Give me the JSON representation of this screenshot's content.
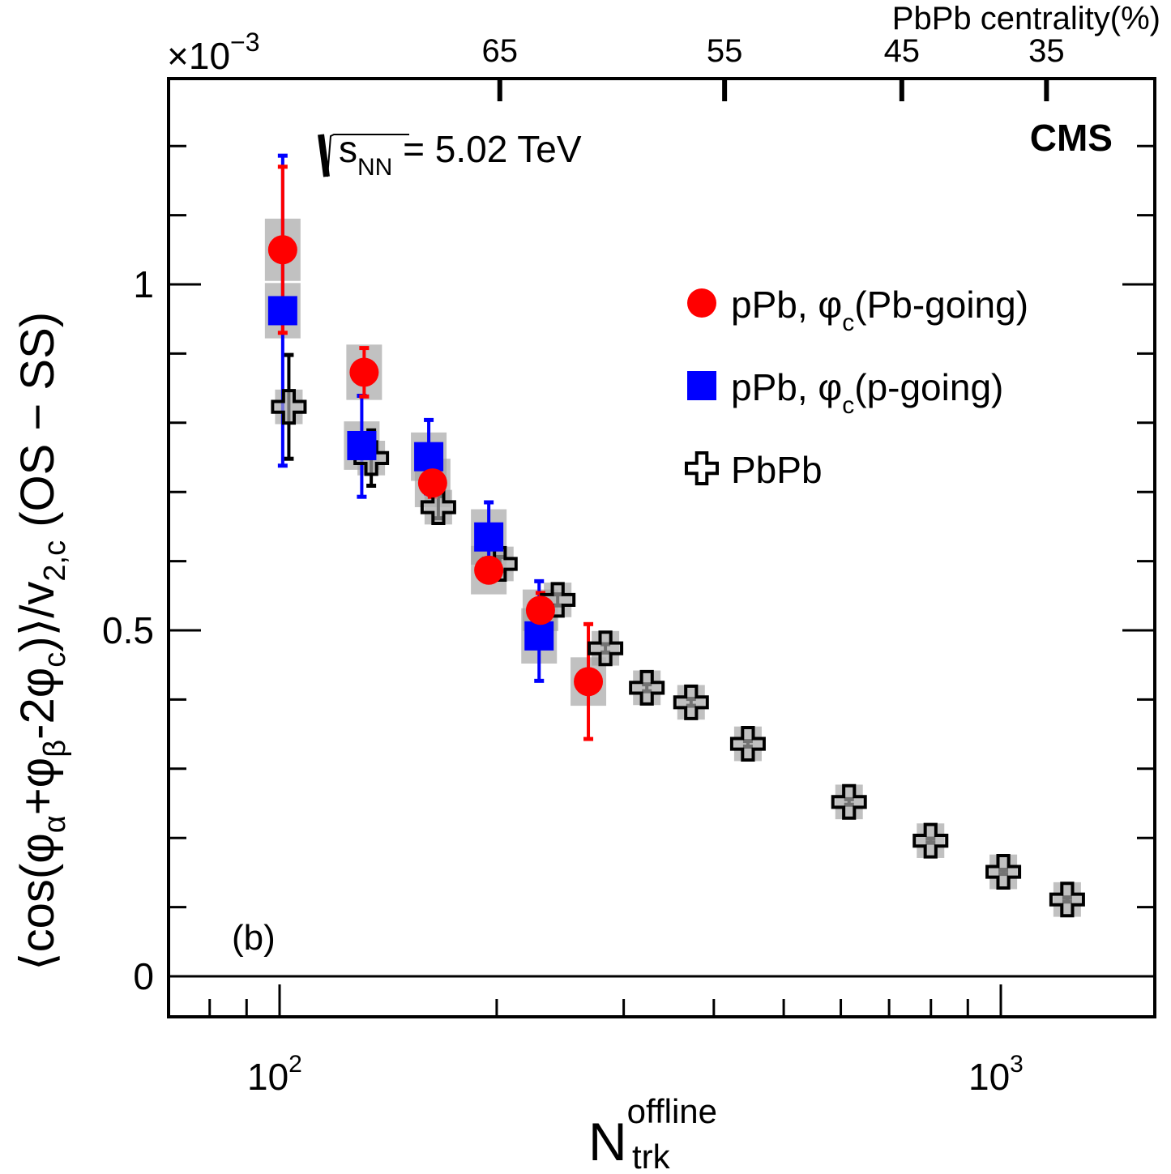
{
  "chart_data": {
    "type": "scatter",
    "title": "",
    "xlabel": "N_trk^offline",
    "xlabel_main": "N",
    "xlabel_sup": "offline",
    "xlabel_sub": "trk",
    "ylabel": "⟨cos(φα+φβ-2φc)⟩/v2,c (OS − SS)",
    "ylabel_parts": {
      "open": "⟨cos(φ",
      "sub_alpha": "α",
      "plus": "+φ",
      "sub_beta": "β",
      "minus2": "-2φ",
      "sub_c": "c",
      "close": ")⟩/v",
      "sub_2c": "2,c",
      "tail": " (OS − SS)"
    },
    "y_multiplier": "×10",
    "y_multiplier_exp": "−3",
    "xscale": "log",
    "xlim": [
      70,
      1630
    ],
    "ylim": [
      -0.06,
      1.3
    ],
    "grid": false,
    "x_ticks_major": [
      {
        "value": 100,
        "base": "10",
        "exp": "2"
      },
      {
        "value": 1000,
        "base": "10",
        "exp": "3"
      }
    ],
    "x_ticks_minor": [
      80,
      90,
      200,
      300,
      400,
      500,
      600,
      700,
      800,
      900
    ],
    "y_ticks_major": [
      {
        "value": 0,
        "label": "0"
      },
      {
        "value": 0.5,
        "label": "0.5"
      },
      {
        "value": 1,
        "label": "1"
      }
    ],
    "y_ticks_minor": [
      0.1,
      0.2,
      0.3,
      0.4,
      0.6,
      0.7,
      0.8,
      0.9,
      1.1,
      1.2
    ],
    "top_axis": {
      "label": "PbPb centrality(%)",
      "ticks": [
        {
          "label": "65",
          "n_value": 202
        },
        {
          "label": "55",
          "n_value": 414
        },
        {
          "label": "45",
          "n_value": 729
        },
        {
          "label": "35",
          "n_value": 1157
        }
      ]
    },
    "annotations": {
      "energy_prefix": "s",
      "energy_sub": "NN",
      "energy_value": " = 5.02 TeV",
      "experiment": "CMS",
      "panel": "(b)"
    },
    "legend_position": "top-right",
    "series": [
      {
        "name": "pPb, φc(Pb-going)",
        "legend_main": "pPb, φ",
        "legend_sub": "c",
        "legend_tail": "(Pb-going)",
        "marker": "circle",
        "color": "#ff0000",
        "points": [
          {
            "x": 101,
            "y": 1.05,
            "err_lo": 0.12,
            "err_hi": 0.12,
            "sys": 0.045
          },
          {
            "x": 131,
            "y": 0.873,
            "err_lo": 0.035,
            "err_hi": 0.035,
            "sys": 0.04
          },
          {
            "x": 163,
            "y": 0.713,
            "err_lo": 0.02,
            "err_hi": 0.02,
            "sys": 0.035
          },
          {
            "x": 195,
            "y": 0.587,
            "err_lo": 0.015,
            "err_hi": 0.015,
            "sys": 0.035
          },
          {
            "x": 230,
            "y": 0.529,
            "err_lo": 0.025,
            "err_hi": 0.025,
            "sys": 0.03
          },
          {
            "x": 268,
            "y": 0.426,
            "err_lo": 0.083,
            "err_hi": 0.083,
            "sys": 0.035
          }
        ]
      },
      {
        "name": "pPb, φc(p-going)",
        "legend_main": "pPb, φ",
        "legend_sub": "c",
        "legend_tail": "(p-going)",
        "marker": "square",
        "color": "#0000ff",
        "points": [
          {
            "x": 101,
            "y": 0.962,
            "err_lo": 0.224,
            "err_hi": 0.224,
            "sys": 0.04
          },
          {
            "x": 130,
            "y": 0.767,
            "err_lo": 0.074,
            "err_hi": 0.072,
            "sys": 0.035
          },
          {
            "x": 161,
            "y": 0.751,
            "err_lo": 0.053,
            "err_hi": 0.053,
            "sys": 0.035
          },
          {
            "x": 195,
            "y": 0.635,
            "err_lo": 0.05,
            "err_hi": 0.05,
            "sys": 0.04
          },
          {
            "x": 229,
            "y": 0.492,
            "err_lo": 0.065,
            "err_hi": 0.079,
            "sys": 0.04
          }
        ]
      },
      {
        "name": "PbPb",
        "legend_main": "PbPb",
        "legend_sub": "",
        "legend_tail": "",
        "marker": "cross-open",
        "color": "#000000",
        "points": [
          {
            "x": 103,
            "y": 0.823,
            "err_lo": 0.075,
            "err_hi": 0.075,
            "sys": 0.025
          },
          {
            "x": 134,
            "y": 0.749,
            "err_lo": 0.04,
            "err_hi": 0.04,
            "sys": 0.025
          },
          {
            "x": 166,
            "y": 0.678,
            "err_lo": 0.016,
            "err_hi": 0.016,
            "sys": 0.025
          },
          {
            "x": 202,
            "y": 0.596,
            "err_lo": 0.01,
            "err_hi": 0.01,
            "sys": 0.025
          },
          {
            "x": 243,
            "y": 0.544,
            "err_lo": 0.008,
            "err_hi": 0.008,
            "sys": 0.025
          },
          {
            "x": 283,
            "y": 0.474,
            "err_lo": 0.006,
            "err_hi": 0.006,
            "sys": 0.025
          },
          {
            "x": 323,
            "y": 0.417,
            "err_lo": 0.005,
            "err_hi": 0.005,
            "sys": 0.025
          },
          {
            "x": 372,
            "y": 0.396,
            "err_lo": 0.005,
            "err_hi": 0.005,
            "sys": 0.025
          },
          {
            "x": 446,
            "y": 0.336,
            "err_lo": 0.004,
            "err_hi": 0.004,
            "sys": 0.025
          },
          {
            "x": 616,
            "y": 0.252,
            "err_lo": 0.004,
            "err_hi": 0.004,
            "sys": 0.025
          },
          {
            "x": 799,
            "y": 0.196,
            "err_lo": 0.003,
            "err_hi": 0.003,
            "sys": 0.025
          },
          {
            "x": 1008,
            "y": 0.151,
            "err_lo": 0.003,
            "err_hi": 0.003,
            "sys": 0.025
          },
          {
            "x": 1236,
            "y": 0.111,
            "err_lo": 0.003,
            "err_hi": 0.003,
            "sys": 0.025
          }
        ]
      }
    ]
  }
}
